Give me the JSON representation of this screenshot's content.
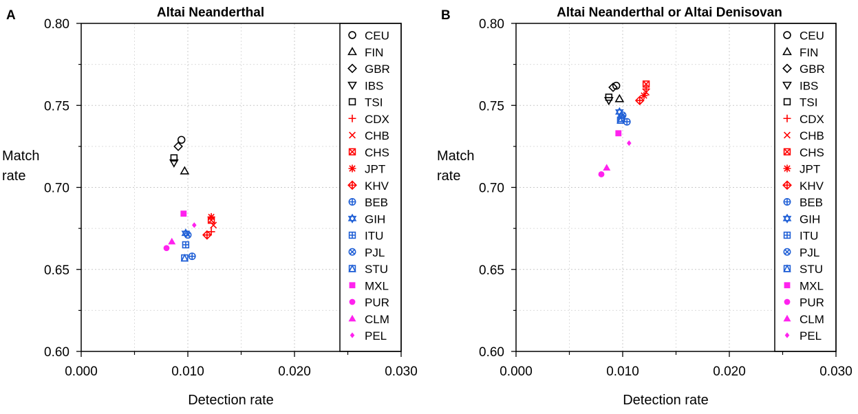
{
  "chart_data": [
    {
      "type": "scatter",
      "panel_label": "A",
      "title": "Altai Neanderthal",
      "xlabel": "Detection rate",
      "ylabel_line1": "Match",
      "ylabel_line2": "rate",
      "xlim": [
        0,
        0.03
      ],
      "ylim": [
        0.6,
        0.8
      ],
      "xticks": [
        0.0,
        0.01,
        0.02,
        0.03
      ],
      "xtick_labels": [
        "0.000",
        "0.010",
        "0.020",
        "0.030"
      ],
      "yticks": [
        0.6,
        0.65,
        0.7,
        0.75,
        0.8
      ],
      "ytick_labels": [
        "0.60",
        "0.65",
        "0.70",
        "0.75",
        "0.80"
      ],
      "grid": true,
      "legend_position": "right",
      "series": [
        {
          "name": "CEU",
          "marker": "circle-open",
          "color": "#000000",
          "x": 0.0094,
          "y": 0.729
        },
        {
          "name": "FIN",
          "marker": "triangle-open",
          "color": "#000000",
          "x": 0.0097,
          "y": 0.71
        },
        {
          "name": "GBR",
          "marker": "diamond-open",
          "color": "#000000",
          "x": 0.0091,
          "y": 0.725
        },
        {
          "name": "IBS",
          "marker": "triangle-down-open",
          "color": "#000000",
          "x": 0.0087,
          "y": 0.715
        },
        {
          "name": "TSI",
          "marker": "square-open",
          "color": "#000000",
          "x": 0.0087,
          "y": 0.718
        },
        {
          "name": "CDX",
          "marker": "plus",
          "color": "#ff0000",
          "x": 0.0122,
          "y": 0.673
        },
        {
          "name": "CHB",
          "marker": "cross",
          "color": "#ff0000",
          "x": 0.0124,
          "y": 0.677
        },
        {
          "name": "CHS",
          "marker": "square-cross",
          "color": "#ff0000",
          "x": 0.0122,
          "y": 0.68
        },
        {
          "name": "JPT",
          "marker": "asterisk",
          "color": "#ff0000",
          "x": 0.0122,
          "y": 0.682
        },
        {
          "name": "KHV",
          "marker": "diamond-plus",
          "color": "#ff0000",
          "x": 0.0118,
          "y": 0.671
        },
        {
          "name": "BEB",
          "marker": "circle-plus",
          "color": "#1f5fd6",
          "x": 0.0104,
          "y": 0.658
        },
        {
          "name": "GIH",
          "marker": "star-of-david",
          "color": "#1f5fd6",
          "x": 0.0098,
          "y": 0.672
        },
        {
          "name": "ITU",
          "marker": "square-plus",
          "color": "#1f5fd6",
          "x": 0.0098,
          "y": 0.665
        },
        {
          "name": "PJL",
          "marker": "circle-cross",
          "color": "#1f5fd6",
          "x": 0.01,
          "y": 0.671
        },
        {
          "name": "STU",
          "marker": "square-triangle",
          "color": "#1f5fd6",
          "x": 0.0097,
          "y": 0.657
        },
        {
          "name": "MXL",
          "marker": "square-filled",
          "color": "#ff22ee",
          "x": 0.0096,
          "y": 0.684
        },
        {
          "name": "PUR",
          "marker": "circle-filled",
          "color": "#ff22ee",
          "x": 0.008,
          "y": 0.663
        },
        {
          "name": "CLM",
          "marker": "triangle-filled",
          "color": "#ff22ee",
          "x": 0.0085,
          "y": 0.667
        },
        {
          "name": "PEL",
          "marker": "diamond-filled",
          "color": "#ff22ee",
          "x": 0.0106,
          "y": 0.677
        }
      ]
    },
    {
      "type": "scatter",
      "panel_label": "B",
      "title": "Altai Neanderthal or Altai Denisovan",
      "xlabel": "Detection rate",
      "ylabel_line1": "Match",
      "ylabel_line2": "rate",
      "xlim": [
        0,
        0.03
      ],
      "ylim": [
        0.6,
        0.8
      ],
      "xticks": [
        0.0,
        0.01,
        0.02,
        0.03
      ],
      "xtick_labels": [
        "0.000",
        "0.010",
        "0.020",
        "0.030"
      ],
      "yticks": [
        0.6,
        0.65,
        0.7,
        0.75,
        0.8
      ],
      "ytick_labels": [
        "0.60",
        "0.65",
        "0.70",
        "0.75",
        "0.80"
      ],
      "grid": true,
      "legend_position": "right",
      "series": [
        {
          "name": "CEU",
          "marker": "circle-open",
          "color": "#000000",
          "x": 0.0094,
          "y": 0.762
        },
        {
          "name": "FIN",
          "marker": "triangle-open",
          "color": "#000000",
          "x": 0.0097,
          "y": 0.754
        },
        {
          "name": "GBR",
          "marker": "diamond-open",
          "color": "#000000",
          "x": 0.0091,
          "y": 0.761
        },
        {
          "name": "IBS",
          "marker": "triangle-down-open",
          "color": "#000000",
          "x": 0.0087,
          "y": 0.753
        },
        {
          "name": "TSI",
          "marker": "square-open",
          "color": "#000000",
          "x": 0.0087,
          "y": 0.755
        },
        {
          "name": "CDX",
          "marker": "plus",
          "color": "#ff0000",
          "x": 0.0122,
          "y": 0.76
        },
        {
          "name": "CHB",
          "marker": "cross",
          "color": "#ff0000",
          "x": 0.0122,
          "y": 0.758
        },
        {
          "name": "CHS",
          "marker": "square-cross",
          "color": "#ff0000",
          "x": 0.0122,
          "y": 0.763
        },
        {
          "name": "JPT",
          "marker": "asterisk",
          "color": "#ff0000",
          "x": 0.012,
          "y": 0.756
        },
        {
          "name": "KHV",
          "marker": "diamond-plus",
          "color": "#ff0000",
          "x": 0.0116,
          "y": 0.753
        },
        {
          "name": "BEB",
          "marker": "circle-plus",
          "color": "#1f5fd6",
          "x": 0.0104,
          "y": 0.74
        },
        {
          "name": "GIH",
          "marker": "star-of-david",
          "color": "#1f5fd6",
          "x": 0.0097,
          "y": 0.746
        },
        {
          "name": "ITU",
          "marker": "square-plus",
          "color": "#1f5fd6",
          "x": 0.0099,
          "y": 0.742
        },
        {
          "name": "PJL",
          "marker": "circle-cross",
          "color": "#1f5fd6",
          "x": 0.01,
          "y": 0.744
        },
        {
          "name": "STU",
          "marker": "square-triangle",
          "color": "#1f5fd6",
          "x": 0.0098,
          "y": 0.741
        },
        {
          "name": "MXL",
          "marker": "square-filled",
          "color": "#ff22ee",
          "x": 0.0096,
          "y": 0.733
        },
        {
          "name": "PUR",
          "marker": "circle-filled",
          "color": "#ff22ee",
          "x": 0.008,
          "y": 0.708
        },
        {
          "name": "CLM",
          "marker": "triangle-filled",
          "color": "#ff22ee",
          "x": 0.0085,
          "y": 0.712
        },
        {
          "name": "PEL",
          "marker": "diamond-filled",
          "color": "#ff22ee",
          "x": 0.0106,
          "y": 0.727
        }
      ]
    }
  ]
}
